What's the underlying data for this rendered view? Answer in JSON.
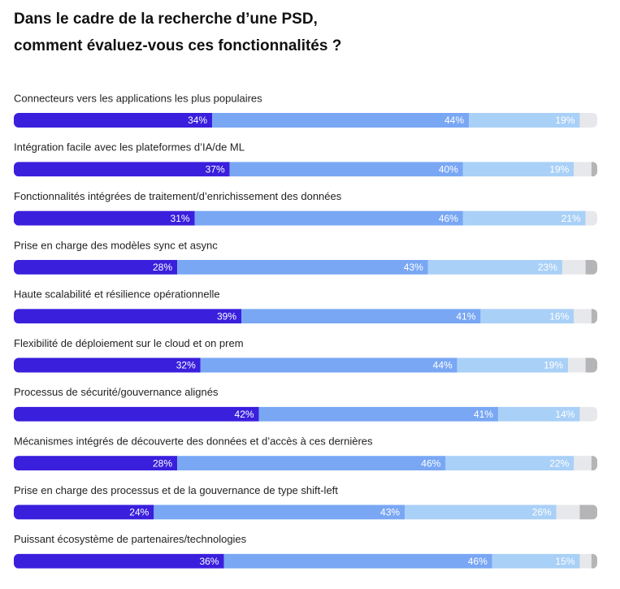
{
  "chart_data": {
    "type": "stacked-bar-horizontal",
    "title": [
      "Dans le cadre de la recherche d’une PSD,",
      "comment évaluez-vous ces fonctionnalités ?"
    ],
    "categories": [
      "Connecteurs vers les applications les plus populaires",
      "Intégration facile avec les plateformes d’IA/de ML",
      "Fonctionnalités intégrées de traitement/d’enrichissement des données",
      "Prise en charge des modèles sync et async",
      "Haute scalabilité et résilience opérationnelle",
      "Flexibilité de déploiement sur le cloud et on prem",
      "Processus de sécurité/gouvernance alignés",
      "Mécanismes intégrés de découverte des données et d’accès à ces dernières",
      "Prise en charge des processus et de la gouvernance de type shift-left",
      "Puissant écosystème de partenaires/technologies"
    ],
    "xlim": [
      0,
      100
    ],
    "series": [
      {
        "color": "#3a1fdd",
        "values": [
          34,
          37,
          31,
          28,
          39,
          32,
          42,
          28,
          24,
          36
        ],
        "value_labels": [
          "34%",
          "37%",
          "31%",
          "28%",
          "39%",
          "32%",
          "42%",
          "28%",
          "24%",
          "36%"
        ]
      },
      {
        "color": "#79a7f4",
        "values": [
          44,
          40,
          46,
          43,
          41,
          44,
          41,
          46,
          43,
          46
        ],
        "value_labels": [
          "44%",
          "40%",
          "46%",
          "43%",
          "41%",
          "44%",
          "41%",
          "46%",
          "43%",
          "46%"
        ]
      },
      {
        "color": "#a9d0f7",
        "values": [
          19,
          19,
          21,
          23,
          16,
          19,
          14,
          22,
          26,
          15
        ],
        "value_labels": [
          "19%",
          "19%",
          "21%",
          "23%",
          "16%",
          "19%",
          "14%",
          "22%",
          "26%",
          "15%"
        ]
      },
      {
        "color": "#e7e8eb",
        "values": [
          3,
          3,
          2,
          4,
          3,
          3,
          3,
          3,
          4,
          2
        ]
      },
      {
        "color": "#b5b5b8",
        "values": [
          0,
          1,
          0,
          2,
          1,
          2,
          0,
          1,
          3,
          1
        ]
      }
    ]
  }
}
